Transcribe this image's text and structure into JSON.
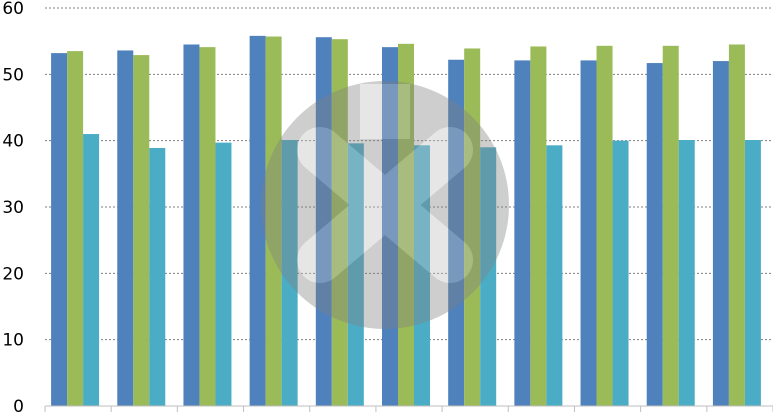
{
  "chart_data": {
    "type": "bar",
    "categories": [
      "",
      "",
      "",
      "",
      "",
      "",
      "",
      "",
      "",
      "",
      ""
    ],
    "series": [
      {
        "color": "#4f81bd",
        "values": [
          53.2,
          53.6,
          54.5,
          55.8,
          55.6,
          54.1,
          52.2,
          52.1,
          52.1,
          51.7,
          52.0
        ]
      },
      {
        "color": "#9bbb59",
        "values": [
          53.5,
          52.9,
          54.1,
          55.7,
          55.3,
          54.6,
          53.9,
          54.2,
          54.3,
          54.3,
          54.5
        ]
      },
      {
        "color": "#4bacc6",
        "values": [
          41.0,
          38.9,
          39.7,
          40.1,
          39.6,
          39.3,
          39.0,
          39.3,
          40.0,
          40.1,
          40.1
        ]
      }
    ],
    "yticks": [
      "0",
      "10",
      "20",
      "30",
      "40",
      "50",
      "60"
    ],
    "ylim": [
      0,
      60
    ],
    "grid": true,
    "legend": "none",
    "title": "",
    "xlabel": "",
    "ylabel": ""
  },
  "watermark": {
    "icon": "circle-x-watermark",
    "color": "#808080"
  }
}
